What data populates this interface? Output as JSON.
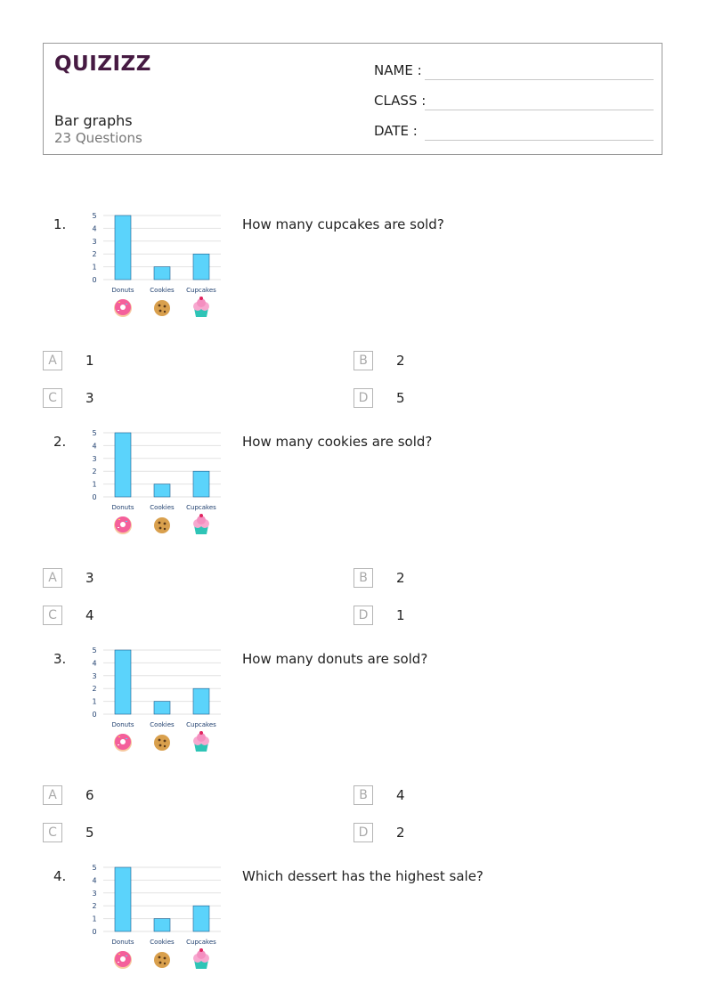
{
  "header": {
    "logo_text": "QUIZIZZ",
    "title": "Bar graphs",
    "question_count": "23 Questions",
    "fields": [
      {
        "label": "NAME :"
      },
      {
        "label": "CLASS :"
      },
      {
        "label": "DATE  :"
      }
    ]
  },
  "chart_template": {
    "type": "bar",
    "categories": [
      "Donuts",
      "Cookies",
      "Cupcakes"
    ],
    "values": [
      5,
      1,
      2
    ],
    "ylim": [
      0,
      5
    ],
    "y_ticks": [
      "0",
      "1",
      "2",
      "3",
      "4",
      "5"
    ],
    "bar_color": "#5bd3fb",
    "icons": [
      "donut-icon",
      "cookie-icon",
      "cupcake-icon"
    ]
  },
  "questions": [
    {
      "number": "1.",
      "text": "How many cupcakes are sold?",
      "options": [
        {
          "letter": "A",
          "text": "1"
        },
        {
          "letter": "B",
          "text": "2"
        },
        {
          "letter": "C",
          "text": "3"
        },
        {
          "letter": "D",
          "text": "5"
        }
      ]
    },
    {
      "number": "2.",
      "text": "How many cookies are sold?",
      "options": [
        {
          "letter": "A",
          "text": "3"
        },
        {
          "letter": "B",
          "text": "2"
        },
        {
          "letter": "C",
          "text": "4"
        },
        {
          "letter": "D",
          "text": "1"
        }
      ]
    },
    {
      "number": "3.",
      "text": "How many donuts are sold?",
      "options": [
        {
          "letter": "A",
          "text": "6"
        },
        {
          "letter": "B",
          "text": "4"
        },
        {
          "letter": "C",
          "text": "5"
        },
        {
          "letter": "D",
          "text": "2"
        }
      ]
    },
    {
      "number": "4.",
      "text": "Which dessert has the highest sale?",
      "options": []
    }
  ],
  "chart_data": [
    {
      "type": "bar",
      "categories": [
        "Donuts",
        "Cookies",
        "Cupcakes"
      ],
      "values": [
        5,
        1,
        2
      ],
      "ylim": [
        0,
        5
      ]
    },
    {
      "type": "bar",
      "categories": [
        "Donuts",
        "Cookies",
        "Cupcakes"
      ],
      "values": [
        5,
        1,
        2
      ],
      "ylim": [
        0,
        5
      ]
    },
    {
      "type": "bar",
      "categories": [
        "Donuts",
        "Cookies",
        "Cupcakes"
      ],
      "values": [
        5,
        1,
        2
      ],
      "ylim": [
        0,
        5
      ]
    },
    {
      "type": "bar",
      "categories": [
        "Donuts",
        "Cookies",
        "Cupcakes"
      ],
      "values": [
        5,
        1,
        2
      ],
      "ylim": [
        0,
        5
      ]
    }
  ]
}
